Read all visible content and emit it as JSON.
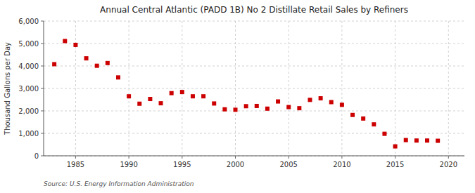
{
  "chart_data": {
    "type": "scatter",
    "title": "Annual Central Atlantic (PADD 1B) No 2 Distillate Retail Sales by Refiners",
    "ylabel": "Thousand Gallons per Day",
    "annotation": "Source: U.S. Energy Information Administration",
    "color": "#cc0000",
    "marker": "square",
    "grid": true,
    "xlim": [
      1982.0,
      2021.5
    ],
    "ylim": [
      0,
      6000
    ],
    "xticks": [
      1985,
      1990,
      1995,
      2000,
      2005,
      2010,
      2015,
      2020
    ],
    "yticks": [
      0,
      {
        "value": 1000,
        "label": "1,000"
      },
      {
        "value": 2000,
        "label": "2,000"
      },
      {
        "value": 3000,
        "label": "3,000"
      },
      {
        "value": 4000,
        "label": "4,000"
      },
      {
        "value": 5000,
        "label": "5,000"
      },
      {
        "value": 6000,
        "label": "6,000"
      }
    ],
    "x": [
      1983,
      1984,
      1985,
      1986,
      1987,
      1988,
      1989,
      1990,
      1991,
      1992,
      1993,
      1994,
      1995,
      1996,
      1997,
      1998,
      1999,
      2000,
      2001,
      2002,
      2003,
      2004,
      2005,
      2006,
      2007,
      2008,
      2009,
      2010,
      2011,
      2012,
      2013,
      2014,
      2015,
      2016,
      2017,
      2018,
      2019
    ],
    "values": [
      4080,
      5110,
      4940,
      4340,
      4010,
      4130,
      3490,
      2650,
      2320,
      2530,
      2340,
      2790,
      2840,
      2650,
      2650,
      2330,
      2070,
      2050,
      2210,
      2220,
      2100,
      2420,
      2170,
      2120,
      2490,
      2560,
      2390,
      2270,
      1820,
      1660,
      1400,
      980,
      420,
      700,
      680,
      680,
      670
    ]
  }
}
